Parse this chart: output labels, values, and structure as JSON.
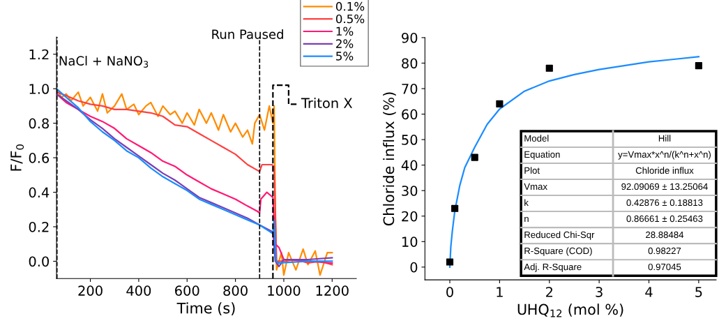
{
  "chart_data": [
    {
      "type": "line",
      "xlabel": "Time (s)",
      "ylabel": "F/F$_{0}$",
      "xlim": [
        60,
        1300
      ],
      "ylim": [
        -0.1,
        1.3
      ],
      "xticks": [
        200,
        400,
        600,
        800,
        1000,
        1200
      ],
      "yticks": [
        {
          "value": 0,
          "label": "0.0"
        },
        {
          "value": 0.2,
          "label": "0.2"
        },
        {
          "value": 0.4,
          "label": "0.4"
        },
        {
          "value": 0.6,
          "label": "0.6"
        },
        {
          "value": 0.8,
          "label": "0.8"
        },
        {
          "value": 1.0,
          "label": "1.0"
        },
        {
          "value": 1.2,
          "label": "1.2"
        }
      ],
      "grid": false,
      "legend": "top right",
      "line_style": "solid",
      "ref_lines": [
        {
          "axis": "x",
          "value": 62,
          "label": "NaCl + NaNO$_{3}$",
          "color": "#000000",
          "line_style": "dashed"
        },
        {
          "axis": "x",
          "value": 900,
          "label": "Run Paused",
          "color": "#000000",
          "line_style": "dashed"
        }
      ],
      "series": [
        {
          "name": "0.1%",
          "color": "#ff8c00",
          "x": [
            60,
            80,
            100,
            120,
            150,
            170,
            200,
            230,
            250,
            270,
            300,
            330,
            350,
            380,
            400,
            430,
            450,
            480,
            500,
            530,
            550,
            580,
            600,
            630,
            650,
            680,
            700,
            730,
            750,
            780,
            800,
            830,
            850,
            870,
            880,
            900,
            920,
            940,
            955,
            960,
            965,
            970,
            990,
            1000,
            1020,
            1050,
            1080,
            1100,
            1130,
            1150,
            1180,
            1200
          ],
          "values": [
            1.0,
            0.95,
            0.97,
            0.93,
            0.98,
            0.9,
            0.95,
            0.87,
            0.97,
            0.86,
            0.9,
            0.97,
            0.88,
            0.91,
            0.85,
            0.9,
            0.92,
            0.84,
            0.9,
            0.85,
            0.87,
            0.8,
            0.86,
            0.79,
            0.88,
            0.8,
            0.86,
            0.76,
            0.85,
            0.75,
            0.8,
            0.72,
            0.76,
            0.68,
            0.8,
            0.85,
            0.76,
            0.9,
            0.8,
            0.9,
            0.3,
            -0.05,
            0.05,
            -0.08,
            0.05,
            -0.05,
            0.07,
            -0.02,
            0.06,
            -0.08,
            0.05,
            0.05
          ]
        },
        {
          "name": "0.5%",
          "color": "#ff4040",
          "x": [
            60,
            100,
            150,
            200,
            250,
            300,
            350,
            400,
            450,
            500,
            550,
            600,
            650,
            700,
            750,
            800,
            850,
            900,
            910,
            950,
            960,
            970,
            1000,
            1050,
            1100,
            1150,
            1200
          ],
          "values": [
            0.98,
            0.96,
            0.93,
            0.91,
            0.9,
            0.88,
            0.88,
            0.87,
            0.86,
            0.84,
            0.79,
            0.78,
            0.74,
            0.7,
            0.66,
            0.62,
            0.56,
            0.52,
            0.56,
            0.56,
            0.55,
            0.0,
            0.0,
            0.01,
            -0.01,
            0.0,
            -0.02
          ]
        },
        {
          "name": "1%",
          "color": "#ff1a75",
          "x": [
            60,
            100,
            150,
            200,
            250,
            300,
            350,
            400,
            450,
            500,
            550,
            600,
            650,
            700,
            750,
            800,
            850,
            890,
            900,
            905,
            930,
            955,
            965,
            980,
            1000,
            1100,
            1200
          ],
          "values": [
            0.97,
            0.92,
            0.88,
            0.84,
            0.81,
            0.77,
            0.71,
            0.67,
            0.63,
            0.58,
            0.55,
            0.5,
            0.46,
            0.42,
            0.39,
            0.36,
            0.32,
            0.29,
            0.28,
            0.36,
            0.4,
            0.37,
            0.1,
            0.08,
            0.01,
            0.0,
            -0.01
          ]
        },
        {
          "name": "2%",
          "color": "#7b3fb5",
          "x": [
            60,
            100,
            150,
            200,
            250,
            300,
            350,
            400,
            450,
            500,
            550,
            600,
            650,
            700,
            750,
            800,
            850,
            900,
            955,
            965,
            980,
            1000,
            1100,
            1200
          ],
          "values": [
            0.97,
            0.93,
            0.88,
            0.82,
            0.77,
            0.71,
            0.66,
            0.61,
            0.56,
            0.51,
            0.47,
            0.42,
            0.37,
            0.34,
            0.31,
            0.28,
            0.25,
            0.21,
            0.17,
            0.0,
            -0.03,
            0.01,
            0.01,
            0.02
          ]
        },
        {
          "name": "5%",
          "color": "#1a8cff",
          "x": [
            60,
            100,
            150,
            200,
            250,
            300,
            350,
            400,
            450,
            500,
            550,
            600,
            650,
            700,
            750,
            800,
            850,
            900,
            955,
            960,
            968,
            980,
            1100,
            1200
          ],
          "values": [
            1.0,
            0.95,
            0.89,
            0.81,
            0.75,
            0.7,
            0.64,
            0.6,
            0.54,
            0.49,
            0.45,
            0.41,
            0.36,
            0.33,
            0.3,
            0.27,
            0.24,
            0.21,
            0.16,
            0.24,
            0.0,
            -0.01,
            0.0,
            0.0
          ]
        },
        {
          "name": "Triton X",
          "color": "#000000",
          "line_style": "dashed",
          "x": [
            955,
            955,
            1020,
            1020,
            1060
          ],
          "values": [
            -0.1,
            1.02,
            1.02,
            0.91,
            0.91
          ]
        }
      ]
    },
    {
      "type": "scatter",
      "xlabel": "UHQ$_{12}$ (mol %)",
      "ylabel": "Chloride influx (%)",
      "xlim": [
        -0.5,
        5.35
      ],
      "ylim": [
        -5,
        90
      ],
      "xticks": [
        0,
        1,
        2,
        3,
        4,
        5
      ],
      "yticks": [
        0,
        10,
        20,
        30,
        40,
        50,
        60,
        70,
        80,
        90
      ],
      "grid": false,
      "legend": false,
      "annotations": [
        "Model",
        "Hill",
        "Equation",
        "y=Vmax*x^n/(k^n+x^n)",
        "Plot",
        "Chloride influx",
        "Vmax",
        "92.09069 ± 13.25064",
        "k",
        "0.42876 ± 0.18813",
        "n",
        "0.86661 ± 0.25463",
        "Reduced Chi-Sqr",
        "28.88484",
        "R-Square (COD)",
        "0.98227",
        "Adj. R-Square",
        "0.97045"
      ],
      "series": [
        {
          "type": "line",
          "color": "#1a8cff",
          "marker": "none",
          "x": [
            0,
            0.02,
            0.05,
            0.1,
            0.2,
            0.3,
            0.5,
            0.75,
            1,
            1.5,
            2,
            2.5,
            3,
            3.5,
            4,
            4.5,
            5
          ],
          "values": [
            0,
            8,
            14,
            22,
            32,
            39,
            47,
            56,
            62,
            69,
            73,
            75.5,
            77.5,
            79,
            80.5,
            81.5,
            82.5
          ]
        },
        {
          "type": "scatter",
          "color": "#000000",
          "marker": "square",
          "x": [
            0,
            0.1,
            0.5,
            1,
            2,
            5
          ],
          "values": [
            2,
            23,
            43,
            64,
            78,
            79
          ]
        }
      ]
    }
  ]
}
